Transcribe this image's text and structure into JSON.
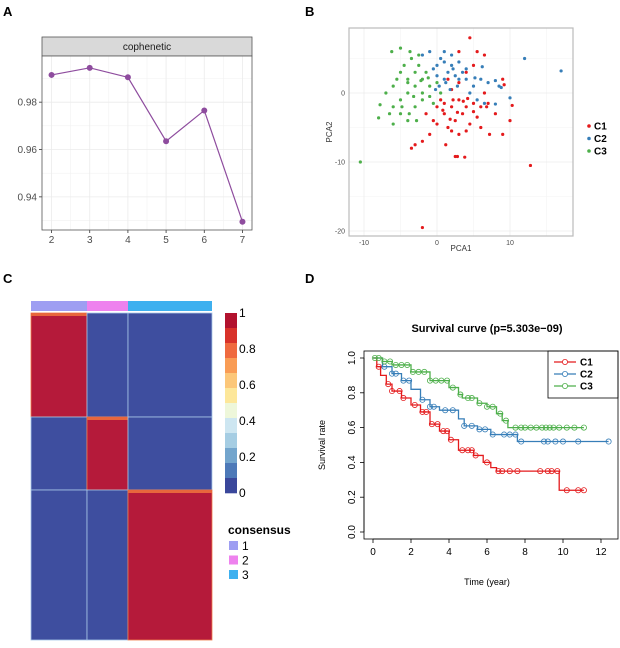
{
  "panels": {
    "a": "A",
    "b": "B",
    "c": "C",
    "d": "D"
  },
  "chart_data": [
    {
      "panel": "A",
      "type": "line",
      "strip_title": "cophenetic",
      "x": [
        2,
        3,
        4,
        5,
        6,
        7
      ],
      "y": [
        0.9915,
        0.9945,
        0.9905,
        0.9635,
        0.9765,
        0.9295
      ],
      "xticks": [
        "2",
        "3",
        "4",
        "5",
        "6",
        "7"
      ],
      "yticks": [
        0.94,
        0.96,
        0.98
      ],
      "ytick_labels": [
        "0.94",
        "0.96",
        "0.98"
      ],
      "ylim": [
        0.926,
        0.9995
      ],
      "xlim": [
        1.75,
        7.25
      ],
      "grid": true,
      "color": "#8e4c9e"
    },
    {
      "panel": "B",
      "type": "scatter",
      "xlabel": "PCA1",
      "ylabel": "PCA2",
      "xlim": [
        -12,
        19
      ],
      "ylim": [
        -21,
        9
      ],
      "xticks": [
        -10,
        0,
        10
      ],
      "xtick_labels": [
        "-10",
        "0",
        "10"
      ],
      "yticks": [
        -20,
        -10,
        0
      ],
      "ytick_labels": [
        "-20",
        "-10",
        "0"
      ],
      "grid": true,
      "legend_position": "right",
      "series": [
        {
          "name": "C1",
          "color": "#e41a1c",
          "points": [
            [
              2,
              -2
            ],
            [
              3,
              -1
            ],
            [
              1,
              -3
            ],
            [
              4,
              -2
            ],
            [
              2.5,
              -4
            ],
            [
              5,
              -1.5
            ],
            [
              0.5,
              -1
            ],
            [
              1.5,
              -5
            ],
            [
              3.5,
              -3
            ],
            [
              6,
              -2
            ],
            [
              7,
              -1.5
            ],
            [
              8,
              -3
            ],
            [
              9,
              -6
            ],
            [
              10,
              -4
            ],
            [
              10.3,
              -1.8
            ],
            [
              9,
              2
            ],
            [
              9.2,
              1.2
            ],
            [
              6.5,
              0
            ],
            [
              5.5,
              -3.5
            ],
            [
              4.5,
              -4.5
            ],
            [
              3,
              -6
            ],
            [
              2,
              -5.5
            ],
            [
              -1,
              -6
            ],
            [
              -2,
              -7
            ],
            [
              -3,
              -7.5
            ],
            [
              -3.5,
              -8
            ],
            [
              1.2,
              -7.5
            ],
            [
              -0.5,
              -4
            ],
            [
              0,
              -2
            ],
            [
              1,
              -1.5
            ],
            [
              2,
              0.5
            ],
            [
              3,
              1.5
            ],
            [
              4,
              3
            ],
            [
              4.5,
              8
            ],
            [
              5.5,
              6
            ],
            [
              6.5,
              5.5
            ],
            [
              3,
              6
            ],
            [
              5,
              4
            ],
            [
              1.5,
              2
            ],
            [
              2.8,
              -2.8
            ],
            [
              4.2,
              -0.8
            ],
            [
              6,
              -5
            ],
            [
              7.2,
              -6
            ],
            [
              2.5,
              -9.2
            ],
            [
              2.8,
              -9.2
            ],
            [
              3.8,
              -9.3
            ],
            [
              12.8,
              -10.5
            ],
            [
              -2,
              -19.5
            ],
            [
              0.8,
              -2.5
            ],
            [
              3.6,
              -1.2
            ],
            [
              5,
              -2.7
            ],
            [
              1.8,
              -3.8
            ],
            [
              2.2,
              -1
            ],
            [
              -1.5,
              -3
            ],
            [
              0,
              -4.5
            ],
            [
              4,
              -5.5
            ],
            [
              6.8,
              -2
            ]
          ]
        },
        {
          "name": "C2",
          "color": "#377eb8",
          "points": [
            [
              1.5,
              3
            ],
            [
              2,
              4
            ],
            [
              0.5,
              5
            ],
            [
              1,
              2
            ],
            [
              2.5,
              2.5
            ],
            [
              3,
              4.5
            ],
            [
              -1,
              6
            ],
            [
              0,
              4
            ],
            [
              1,
              6
            ],
            [
              2,
              5.5
            ],
            [
              3.5,
              3
            ],
            [
              4,
              2
            ],
            [
              5,
              1
            ],
            [
              6,
              2
            ],
            [
              7,
              1.5
            ],
            [
              8,
              1.8
            ],
            [
              8.5,
              1
            ],
            [
              8.8,
              0.8
            ],
            [
              -0.5,
              3.5
            ],
            [
              -2,
              5.5
            ],
            [
              0.3,
              1
            ],
            [
              1.8,
              0.5
            ],
            [
              2.8,
              1
            ],
            [
              4.5,
              0
            ],
            [
              5.5,
              -1
            ],
            [
              6.5,
              -1.5
            ],
            [
              8,
              -1.6
            ],
            [
              10,
              -0.7
            ],
            [
              12,
              5
            ],
            [
              17,
              3.2
            ],
            [
              2.2,
              3.5
            ],
            [
              1,
              4.5
            ],
            [
              3,
              2
            ],
            [
              0,
              2.5
            ],
            [
              -0.2,
              0.5
            ],
            [
              4,
              3.5
            ],
            [
              5.2,
              2.2
            ],
            [
              6.2,
              3.8
            ],
            [
              1.2,
              1.5
            ]
          ]
        },
        {
          "name": "C3",
          "color": "#4daf4a",
          "points": [
            [
              -3,
              1
            ],
            [
              -4,
              0
            ],
            [
              -2,
              2
            ],
            [
              -5,
              -1
            ],
            [
              -6,
              -2
            ],
            [
              -3,
              3
            ],
            [
              -4,
              2
            ],
            [
              -2,
              0
            ],
            [
              -1,
              1
            ],
            [
              -5,
              3
            ],
            [
              -6,
              1
            ],
            [
              -7,
              0
            ],
            [
              -7.8,
              -1.7
            ],
            [
              -8,
              -3.6
            ],
            [
              -6,
              -4.5
            ],
            [
              -5,
              -3
            ],
            [
              -4,
              -4
            ],
            [
              -3,
              -2
            ],
            [
              -2,
              -1
            ],
            [
              -1,
              -0.5
            ],
            [
              0,
              1.5
            ],
            [
              0.5,
              0
            ],
            [
              -1.5,
              3
            ],
            [
              -2.5,
              4
            ],
            [
              -3.5,
              5
            ],
            [
              -4.5,
              4
            ],
            [
              -5.5,
              2
            ],
            [
              -6.5,
              -3
            ],
            [
              -5,
              6.5
            ],
            [
              -6.2,
              6
            ],
            [
              -3.7,
              6
            ],
            [
              -2.5,
              5.5
            ],
            [
              -4,
              1.5
            ],
            [
              -3.2,
              -0.5
            ],
            [
              -2.2,
              1.8
            ],
            [
              -1.2,
              2.2
            ],
            [
              -0.5,
              -1.5
            ],
            [
              -4.8,
              -2
            ],
            [
              -3.8,
              -3
            ],
            [
              -2.8,
              -4
            ],
            [
              -10.5,
              -10
            ]
          ]
        }
      ]
    },
    {
      "panel": "C",
      "type": "heatmap",
      "clusters": [
        1,
        2,
        3
      ],
      "cluster_colors": [
        "#9e9ef2",
        "#ee82ee",
        "#3eb0ef"
      ],
      "matrix": [
        [
          1,
          0,
          0
        ],
        [
          0,
          1,
          0
        ],
        [
          0,
          0,
          1
        ]
      ],
      "colorbar_ticks": [
        "1",
        "0.8",
        "0.6",
        "0.4",
        "0.2",
        "0"
      ],
      "colorbar_colors": [
        "#b2122e",
        "#d8322a",
        "#ef6a3f",
        "#f99c55",
        "#fcc779",
        "#fde79a",
        "#eef7da",
        "#cde6f1",
        "#a5cde3",
        "#73a5cd",
        "#4d79b8",
        "#3a479b"
      ],
      "legend_title": "consensus",
      "legend_items": [
        "1",
        "2",
        "3"
      ],
      "low_color": "#3e4e9f",
      "high_color": "#b51a3a"
    },
    {
      "panel": "D",
      "type": "line",
      "title": "Survival curve (p=5.303e−09)",
      "xlabel": "Time (year)",
      "ylabel": "Survival rate",
      "xlim": [
        0,
        12.5
      ],
      "ylim": [
        0,
        1
      ],
      "xticks": [
        "0",
        "2",
        "4",
        "6",
        "8",
        "10",
        "12"
      ],
      "yticks": [
        "0.0",
        "0.2",
        "0.4",
        "0.6",
        "0.8",
        "1.0"
      ],
      "legend_position": "top-right",
      "series": [
        {
          "name": "C1",
          "color": "#e41a1c",
          "end": 11.1,
          "steps": [
            [
              0,
              1
            ],
            [
              0.2,
              0.95
            ],
            [
              0.4,
              0.9
            ],
            [
              0.7,
              0.85
            ],
            [
              1,
              0.81
            ],
            [
              1.5,
              0.77
            ],
            [
              2,
              0.73
            ],
            [
              2.5,
              0.69
            ],
            [
              3,
              0.62
            ],
            [
              3.5,
              0.58
            ],
            [
              4,
              0.53
            ],
            [
              4.5,
              0.47
            ],
            [
              5.3,
              0.44
            ],
            [
              5.8,
              0.4
            ],
            [
              6.2,
              0.37
            ],
            [
              6.5,
              0.35
            ],
            [
              9.8,
              0.24
            ]
          ],
          "censor": [
            0.3,
            0.8,
            1,
            1.4,
            1.6,
            2.2,
            2.6,
            2.8,
            3.1,
            3.4,
            3.7,
            3.9,
            4.1,
            4.7,
            5,
            5.2,
            5.4,
            6,
            6.6,
            6.8,
            7.2,
            7.6,
            8.8,
            9.2,
            9.4,
            9.7,
            10.2,
            10.8,
            11.1
          ]
        },
        {
          "name": "C2",
          "color": "#377eb8",
          "end": 12.4,
          "steps": [
            [
              0,
              1
            ],
            [
              0.5,
              0.95
            ],
            [
              1,
              0.91
            ],
            [
              1.5,
              0.87
            ],
            [
              2,
              0.82
            ],
            [
              2.5,
              0.76
            ],
            [
              3,
              0.72
            ],
            [
              3.5,
              0.7
            ],
            [
              4.5,
              0.65
            ],
            [
              4.8,
              0.61
            ],
            [
              5.5,
              0.59
            ],
            [
              6.2,
              0.56
            ],
            [
              7.6,
              0.52
            ]
          ],
          "censor": [
            0.6,
            1,
            1.2,
            1.6,
            1.9,
            2.6,
            3,
            3.2,
            3.8,
            4.2,
            4.8,
            5.2,
            5.6,
            5.9,
            6.3,
            6.9,
            7.2,
            7.5,
            7.8,
            9,
            9.2,
            9.6,
            10,
            10.8,
            12.4
          ]
        },
        {
          "name": "C3",
          "color": "#4daf4a",
          "end": 11.1,
          "steps": [
            [
              0,
              1
            ],
            [
              0.5,
              0.98
            ],
            [
              1,
              0.96
            ],
            [
              2,
              0.92
            ],
            [
              3,
              0.87
            ],
            [
              4,
              0.83
            ],
            [
              4.5,
              0.79
            ],
            [
              4.7,
              0.77
            ],
            [
              5.5,
              0.74
            ],
            [
              6,
              0.72
            ],
            [
              6.5,
              0.68
            ],
            [
              6.8,
              0.64
            ],
            [
              7.1,
              0.6
            ]
          ],
          "censor": [
            0.1,
            0.3,
            0.6,
            0.9,
            1.2,
            1.5,
            1.8,
            2.1,
            2.4,
            2.7,
            3,
            3.3,
            3.6,
            3.9,
            4.2,
            4.6,
            5,
            5.2,
            5.6,
            6,
            6.3,
            6.7,
            7,
            7.5,
            7.8,
            8,
            8.3,
            8.6,
            8.9,
            9.1,
            9.3,
            9.5,
            9.8,
            10.2,
            10.6,
            11.1
          ]
        }
      ]
    }
  ]
}
